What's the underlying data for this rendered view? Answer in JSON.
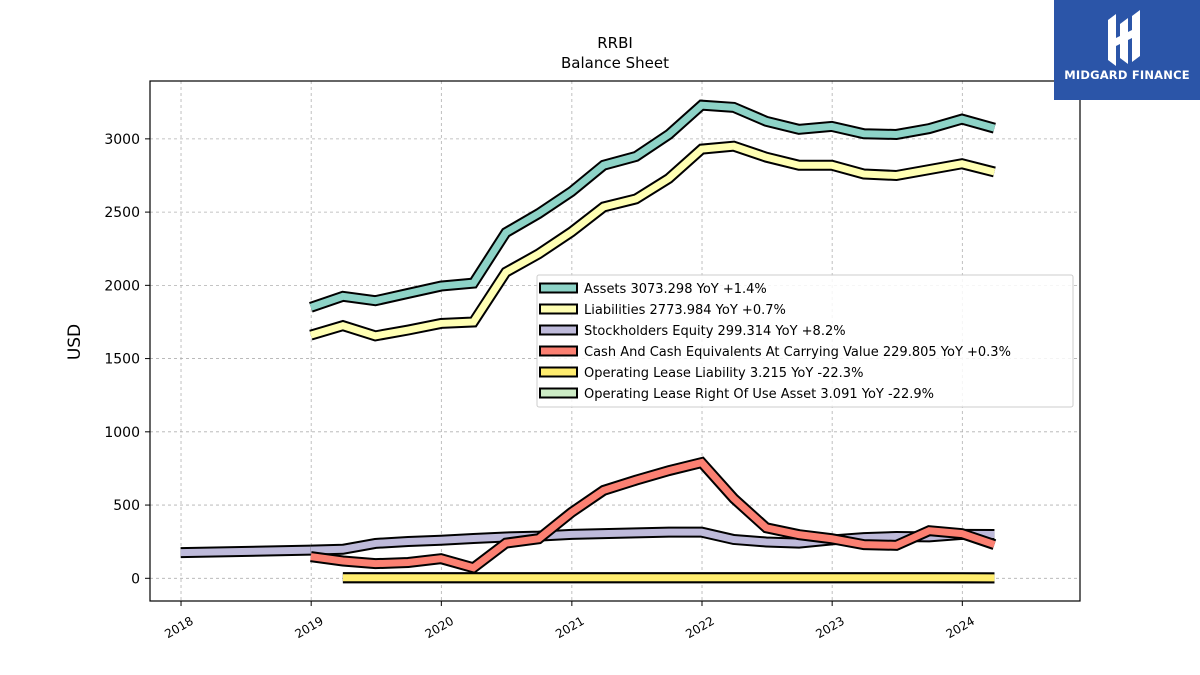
{
  "brand": {
    "name": "MIDGARD FINANCE",
    "bg_color": "#2b55a8"
  },
  "chart_data": {
    "type": "line",
    "title": "RRBI",
    "subtitle": "Balance  Sheet",
    "xlabel": "",
    "ylabel": "USD",
    "x_ticks": [
      "2018",
      "2019",
      "2020",
      "2021",
      "2022",
      "2023",
      "2024"
    ],
    "y_ticks": [
      0,
      500,
      1000,
      1500,
      2000,
      2500,
      3000
    ],
    "xlim": [
      "2017-10-06",
      "2024-11-26"
    ],
    "ylim": [
      -155,
      3395
    ],
    "grid": true,
    "legend_position": "center-right",
    "x": [
      "2018-12-31",
      "2019-03-31",
      "2019-06-30",
      "2019-09-30",
      "2019-12-31",
      "2020-03-31",
      "2020-06-30",
      "2020-09-30",
      "2020-12-31",
      "2021-03-31",
      "2021-06-30",
      "2021-09-30",
      "2021-12-31",
      "2022-03-31",
      "2022-06-30",
      "2022-09-30",
      "2022-12-31",
      "2023-03-31",
      "2023-06-30",
      "2023-09-30",
      "2023-12-31",
      "2024-03-31"
    ],
    "series": [
      {
        "name": "Assets",
        "legend_label": "Assets  3073.298 YoY +1.4%",
        "color": "#8dd3c7",
        "values": [
          1850,
          1925,
          1895,
          1945,
          1995,
          2015,
          2360,
          2490,
          2640,
          2820,
          2880,
          3030,
          3230,
          3215,
          3120,
          3065,
          3085,
          3035,
          3030,
          3070,
          3135,
          3073
        ]
      },
      {
        "name": "Liabilities",
        "legend_label": "Liabilities  2773.984 YoY +0.7%",
        "color": "#ffffb3",
        "values": [
          1660,
          1725,
          1655,
          1695,
          1740,
          1750,
          2090,
          2215,
          2365,
          2535,
          2590,
          2730,
          2930,
          2950,
          2875,
          2820,
          2820,
          2760,
          2750,
          2790,
          2830,
          2774
        ]
      },
      {
        "name": "Stockholders Equity",
        "legend_label": "Stockholders Equity  299.314 YoY +8.2%",
        "color": "#bebada",
        "values": [
          192,
          198,
          238,
          251,
          260,
          272,
          282,
          288,
          300,
          305,
          310,
          315,
          315,
          265,
          248,
          240,
          262,
          278,
          285,
          283,
          300,
          299
        ]
      },
      {
        "name": "Cash And Cash Equivalents At Carrying Value",
        "legend_label": "Cash And Cash Equivalents At Carrying Value  229.805 YoY +0.3%",
        "color": "#fb8072",
        "values": [
          148,
          118,
          100,
          108,
          134,
          72,
          240,
          270,
          450,
          600,
          670,
          735,
          790,
          545,
          345,
          298,
          270,
          230,
          225,
          325,
          305,
          230
        ]
      },
      {
        "name": "Operating Lease Liability",
        "legend_label": "Operating Lease Liability  3.215 YoY -22.3%",
        "color": "#ffed6f",
        "values": [
          null,
          4,
          4,
          4,
          4,
          4,
          4,
          4,
          4,
          4,
          4,
          4,
          4,
          4,
          4,
          4,
          4,
          4,
          4,
          3.5,
          3.3,
          3.215
        ]
      },
      {
        "name": "Operating Lease Right Of Use Asset",
        "legend_label": "Operating Lease Right Of Use Asset  3.091 YoY -22.9%",
        "color": "#ccebc5",
        "values": [
          null,
          4,
          4,
          4,
          4,
          4,
          4,
          4,
          4,
          4,
          4,
          4,
          4,
          4,
          4,
          4,
          4,
          4,
          4,
          3.4,
          3.2,
          3.091
        ]
      }
    ],
    "extra_series": {
      "name": "Stockholders Equity (early)",
      "color": "#bebada",
      "x": [
        "2017-12-31",
        "2018-12-31"
      ],
      "values": [
        175,
        192
      ]
    }
  }
}
